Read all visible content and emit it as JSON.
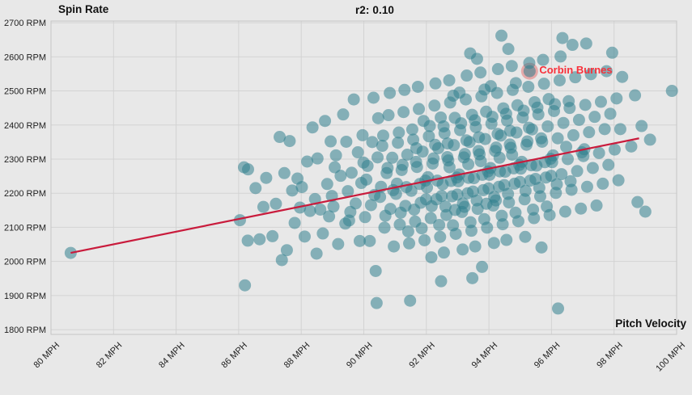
{
  "header": {
    "title": "r2: 0.10"
  },
  "chart_data": {
    "type": "scatter",
    "title": "r2: 0.10",
    "xlabel": "Pitch Velocity",
    "ylabel": "Spin Rate",
    "xlim": [
      80,
      100
    ],
    "ylim": [
      1786,
      2705
    ],
    "grid": true,
    "x_tick_values": [
      80,
      82,
      84,
      86,
      88,
      90,
      92,
      94,
      96,
      98,
      100
    ],
    "x_tick_labels": [
      "80 MPH",
      "82 MPH",
      "84 MPH",
      "86 MPH",
      "88 MPH",
      "90 MPH",
      "92 MPH",
      "94 MPH",
      "96 MPH",
      "98 MPH",
      "100 MPH"
    ],
    "y_tick_values": [
      1800,
      1900,
      2000,
      2100,
      2200,
      2300,
      2400,
      2500,
      2600,
      2700
    ],
    "y_tick_labels": [
      "1800 RPM",
      "1900 RPM",
      "2000 RPM",
      "2100 RPM",
      "2200 RPM",
      "2300 RPM",
      "2400 RPM",
      "2500 RPM",
      "2600 RPM",
      "2700 RPM"
    ],
    "trend_line": {
      "x1": 80.63,
      "y1": 2025,
      "x2": 98.8,
      "y2": 2361
    },
    "annotation": {
      "label": "Corbin Burnes",
      "mph": 95.3,
      "rpm": 2558
    },
    "colors": {
      "background": "#e8e8e8",
      "grid": "#d3d3d3",
      "border": "#c6c6c6",
      "point": "#31808e",
      "point_opacity": 0.55,
      "trend": "#c91b3c",
      "annotation_text": "#f8303a",
      "highlight_ring": "#e05252",
      "text": "#1f1f1f"
    },
    "points": [
      [
        80.63,
        2025
      ],
      [
        86.04,
        2121
      ],
      [
        86.17,
        2276
      ],
      [
        86.29,
        2061
      ],
      [
        86.2,
        1930
      ],
      [
        86.3,
        2270
      ],
      [
        86.54,
        2215
      ],
      [
        86.67,
        2065
      ],
      [
        86.79,
        2160
      ],
      [
        86.88,
        2245
      ],
      [
        87.08,
        2074
      ],
      [
        87.19,
        2169
      ],
      [
        87.31,
        2365
      ],
      [
        87.38,
        2004
      ],
      [
        87.46,
        2259
      ],
      [
        87.54,
        2033
      ],
      [
        87.63,
        2353
      ],
      [
        87.71,
        2208
      ],
      [
        87.79,
        2113
      ],
      [
        87.88,
        2243
      ],
      [
        87.96,
        2158
      ],
      [
        88.02,
        2218
      ],
      [
        88.11,
        2073
      ],
      [
        88.19,
        2293
      ],
      [
        88.28,
        2148
      ],
      [
        88.36,
        2393
      ],
      [
        88.44,
        2183
      ],
      [
        88.49,
        2023
      ],
      [
        88.52,
        2302
      ],
      [
        88.61,
        2152
      ],
      [
        88.69,
        2082
      ],
      [
        88.76,
        2412
      ],
      [
        88.83,
        2227
      ],
      [
        88.89,
        2132
      ],
      [
        88.94,
        2352
      ],
      [
        88.98,
        2192
      ],
      [
        89.03,
        2161
      ],
      [
        89.11,
        2311
      ],
      [
        89.18,
        2051
      ],
      [
        89.26,
        2251
      ],
      [
        89.34,
        2431
      ],
      [
        89.41,
        2111
      ],
      [
        89.49,
        2206
      ],
      [
        89.44,
        2351
      ],
      [
        89.07,
        2276
      ],
      [
        89.53,
        2120
      ],
      [
        89.61,
        2260
      ],
      [
        89.68,
        2475
      ],
      [
        89.74,
        2170
      ],
      [
        89.81,
        2320
      ],
      [
        89.87,
        2060
      ],
      [
        89.92,
        2230
      ],
      [
        89.96,
        2370
      ],
      [
        89.57,
        2145
      ],
      [
        89.99,
        2290
      ],
      [
        90.04,
        2130
      ],
      [
        90.12,
        2280
      ],
      [
        90.19,
        2060
      ],
      [
        90.27,
        2350
      ],
      [
        90.34,
        2195
      ],
      [
        90.41,
        1878
      ],
      [
        90.38,
        1972
      ],
      [
        90.46,
        2420
      ],
      [
        90.08,
        2240
      ],
      [
        90.23,
        2165
      ],
      [
        90.31,
        2480
      ],
      [
        90.44,
        2305
      ],
      [
        90.52,
        2189
      ],
      [
        90.59,
        2339
      ],
      [
        90.66,
        2099
      ],
      [
        90.73,
        2259
      ],
      [
        90.79,
        2429
      ],
      [
        90.85,
        2154
      ],
      [
        90.91,
        2304
      ],
      [
        90.96,
        2044
      ],
      [
        90.55,
        2219
      ],
      [
        90.62,
        2369
      ],
      [
        90.69,
        2134
      ],
      [
        90.76,
        2274
      ],
      [
        90.83,
        2494
      ],
      [
        90.94,
        2209
      ],
      [
        91.03,
        2198
      ],
      [
        91.09,
        2348
      ],
      [
        91.15,
        2108
      ],
      [
        91.21,
        2268
      ],
      [
        91.27,
        2438
      ],
      [
        91.33,
        2163
      ],
      [
        91.39,
        2313
      ],
      [
        91.45,
        2053
      ],
      [
        91.48,
        1885
      ],
      [
        91.06,
        2228
      ],
      [
        91.12,
        2378
      ],
      [
        91.18,
        2143
      ],
      [
        91.24,
        2283
      ],
      [
        91.3,
        2503
      ],
      [
        91.36,
        2218
      ],
      [
        91.42,
        2088
      ],
      [
        91.52,
        2207
      ],
      [
        91.58,
        2357
      ],
      [
        91.64,
        2117
      ],
      [
        91.7,
        2277
      ],
      [
        91.76,
        2447
      ],
      [
        91.82,
        2172
      ],
      [
        91.88,
        2322
      ],
      [
        91.94,
        2062
      ],
      [
        91.97,
        2237
      ],
      [
        91.55,
        2387
      ],
      [
        91.61,
        2152
      ],
      [
        91.67,
        2292
      ],
      [
        91.73,
        2512
      ],
      [
        91.79,
        2227
      ],
      [
        91.85,
        2097
      ],
      [
        91.91,
        2412
      ],
      [
        91.99,
        2182
      ],
      [
        91.68,
        2332
      ],
      [
        92.02,
        2217
      ],
      [
        92.08,
        2367
      ],
      [
        92.14,
        2127
      ],
      [
        92.2,
        2287
      ],
      [
        92.26,
        2457
      ],
      [
        92.32,
        2182
      ],
      [
        92.38,
        2332
      ],
      [
        92.44,
        2072
      ],
      [
        92.47,
        1942
      ],
      [
        92.05,
        2247
      ],
      [
        92.11,
        2397
      ],
      [
        92.17,
        2162
      ],
      [
        92.23,
        2302
      ],
      [
        92.29,
        2522
      ],
      [
        92.35,
        2237
      ],
      [
        92.41,
        2107
      ],
      [
        92.46,
        2422
      ],
      [
        92.49,
        2192
      ],
      [
        92.28,
        2342
      ],
      [
        92.16,
        2012
      ],
      [
        92.52,
        2226
      ],
      [
        92.58,
        2376
      ],
      [
        92.64,
        2136
      ],
      [
        92.7,
        2296
      ],
      [
        92.76,
        2466
      ],
      [
        92.82,
        2191
      ],
      [
        92.88,
        2341
      ],
      [
        92.94,
        2081
      ],
      [
        92.97,
        2246
      ],
      [
        92.55,
        2396
      ],
      [
        92.61,
        2161
      ],
      [
        92.67,
        2306
      ],
      [
        92.73,
        2531
      ],
      [
        92.79,
        2236
      ],
      [
        92.85,
        2106
      ],
      [
        92.91,
        2421
      ],
      [
        92.99,
        2196
      ],
      [
        92.68,
        2346
      ],
      [
        92.56,
        2026
      ],
      [
        92.74,
        2276
      ],
      [
        92.86,
        2486
      ],
      [
        92.92,
        2151
      ],
      [
        93.02,
        2235
      ],
      [
        93.08,
        2385
      ],
      [
        93.14,
        2145
      ],
      [
        93.2,
        2305
      ],
      [
        93.26,
        2475
      ],
      [
        93.32,
        2200
      ],
      [
        93.38,
        2350
      ],
      [
        93.44,
        2090
      ],
      [
        93.47,
        1951
      ],
      [
        93.05,
        2255
      ],
      [
        93.11,
        2405
      ],
      [
        93.17,
        2170
      ],
      [
        93.23,
        2315
      ],
      [
        93.29,
        2545
      ],
      [
        93.35,
        2245
      ],
      [
        93.41,
        2115
      ],
      [
        93.46,
        2430
      ],
      [
        93.49,
        2205
      ],
      [
        93.28,
        2355
      ],
      [
        93.16,
        2035
      ],
      [
        93.34,
        2285
      ],
      [
        93.06,
        2495
      ],
      [
        93.22,
        2160
      ],
      [
        93.4,
        2610
      ],
      [
        93.52,
        2244
      ],
      [
        93.58,
        2394
      ],
      [
        93.64,
        2154
      ],
      [
        93.7,
        2314
      ],
      [
        93.76,
        2484
      ],
      [
        93.82,
        2209
      ],
      [
        93.88,
        2359
      ],
      [
        93.94,
        2099
      ],
      [
        93.97,
        2264
      ],
      [
        93.55,
        2414
      ],
      [
        93.61,
        2179
      ],
      [
        93.67,
        2324
      ],
      [
        93.73,
        2554
      ],
      [
        93.79,
        2254
      ],
      [
        93.85,
        2124
      ],
      [
        93.91,
        2439
      ],
      [
        93.99,
        2214
      ],
      [
        93.68,
        2364
      ],
      [
        93.56,
        2044
      ],
      [
        93.74,
        2294
      ],
      [
        93.86,
        2504
      ],
      [
        93.92,
        2169
      ],
      [
        93.62,
        2594
      ],
      [
        93.78,
        1984
      ],
      [
        94.02,
        2254
      ],
      [
        94.08,
        2404
      ],
      [
        94.14,
        2164
      ],
      [
        94.2,
        2324
      ],
      [
        94.26,
        2494
      ],
      [
        94.32,
        2219
      ],
      [
        94.38,
        2369
      ],
      [
        94.44,
        2109
      ],
      [
        94.4,
        2662
      ],
      [
        94.05,
        2274
      ],
      [
        94.11,
        2424
      ],
      [
        94.17,
        2189
      ],
      [
        94.23,
        2334
      ],
      [
        94.29,
        2564
      ],
      [
        94.35,
        2264
      ],
      [
        94.41,
        2134
      ],
      [
        94.46,
        2449
      ],
      [
        94.49,
        2224
      ],
      [
        94.28,
        2374
      ],
      [
        94.16,
        2054
      ],
      [
        94.34,
        2304
      ],
      [
        94.06,
        2514
      ],
      [
        94.22,
        2179
      ],
      [
        94.52,
        2263
      ],
      [
        94.58,
        2413
      ],
      [
        94.64,
        2173
      ],
      [
        94.7,
        2333
      ],
      [
        94.76,
        2503
      ],
      [
        94.82,
        2228
      ],
      [
        94.88,
        2378
      ],
      [
        94.94,
        2118
      ],
      [
        94.97,
        2283
      ],
      [
        94.55,
        2433
      ],
      [
        94.61,
        2198
      ],
      [
        94.67,
        2343
      ],
      [
        94.73,
        2573
      ],
      [
        94.79,
        2273
      ],
      [
        94.85,
        2143
      ],
      [
        94.91,
        2458
      ],
      [
        94.99,
        2233
      ],
      [
        94.68,
        2383
      ],
      [
        94.56,
        2063
      ],
      [
        94.74,
        2313
      ],
      [
        94.86,
        2523
      ],
      [
        94.62,
        2623
      ],
      [
        95.02,
        2272
      ],
      [
        95.08,
        2422
      ],
      [
        95.14,
        2182
      ],
      [
        95.2,
        2342
      ],
      [
        95.26,
        2512
      ],
      [
        95.32,
        2237
      ],
      [
        95.38,
        2387
      ],
      [
        95.44,
        2127
      ],
      [
        95.05,
        2292
      ],
      [
        95.11,
        2442
      ],
      [
        95.17,
        2207
      ],
      [
        95.23,
        2352
      ],
      [
        95.29,
        2582
      ],
      [
        95.35,
        2282
      ],
      [
        95.41,
        2152
      ],
      [
        95.46,
        2467
      ],
      [
        95.49,
        2242
      ],
      [
        95.28,
        2392
      ],
      [
        95.16,
        2072
      ],
      [
        95.52,
        2281
      ],
      [
        95.58,
        2431
      ],
      [
        95.64,
        2191
      ],
      [
        95.7,
        2351
      ],
      [
        95.76,
        2521
      ],
      [
        95.82,
        2246
      ],
      [
        95.88,
        2396
      ],
      [
        95.94,
        2136
      ],
      [
        95.97,
        2301
      ],
      [
        95.55,
        2451
      ],
      [
        95.61,
        2216
      ],
      [
        95.67,
        2361
      ],
      [
        95.73,
        2591
      ],
      [
        95.79,
        2291
      ],
      [
        95.85,
        2161
      ],
      [
        95.91,
        2476
      ],
      [
        95.99,
        2251
      ],
      [
        95.68,
        2041
      ],
      [
        96.02,
        2291
      ],
      [
        96.08,
        2441
      ],
      [
        96.14,
        2201
      ],
      [
        96.2,
        2361
      ],
      [
        96.21,
        1862
      ],
      [
        96.26,
        2531
      ],
      [
        96.32,
        2256
      ],
      [
        96.38,
        2406
      ],
      [
        96.44,
        2146
      ],
      [
        96.35,
        2655
      ],
      [
        96.05,
        2311
      ],
      [
        96.11,
        2461
      ],
      [
        96.17,
        2226
      ],
      [
        96.29,
        2601
      ],
      [
        96.47,
        2336
      ],
      [
        96.52,
        2300
      ],
      [
        96.58,
        2450
      ],
      [
        96.64,
        2210
      ],
      [
        96.7,
        2370
      ],
      [
        96.76,
        2540
      ],
      [
        96.82,
        2265
      ],
      [
        96.88,
        2415
      ],
      [
        96.94,
        2155
      ],
      [
        96.97,
        2320
      ],
      [
        96.55,
        2470
      ],
      [
        96.61,
        2235
      ],
      [
        96.67,
        2635
      ],
      [
        97.02,
        2309
      ],
      [
        97.08,
        2459
      ],
      [
        97.14,
        2219
      ],
      [
        97.2,
        2379
      ],
      [
        97.26,
        2549
      ],
      [
        97.32,
        2274
      ],
      [
        97.38,
        2424
      ],
      [
        97.44,
        2164
      ],
      [
        97.05,
        2329
      ],
      [
        97.11,
        2639
      ],
      [
        97.52,
        2318
      ],
      [
        97.58,
        2468
      ],
      [
        97.64,
        2228
      ],
      [
        97.7,
        2388
      ],
      [
        97.76,
        2558
      ],
      [
        97.82,
        2283
      ],
      [
        97.88,
        2433
      ],
      [
        97.94,
        2612
      ],
      [
        98.02,
        2328
      ],
      [
        98.08,
        2478
      ],
      [
        98.14,
        2238
      ],
      [
        98.2,
        2388
      ],
      [
        98.26,
        2541
      ],
      [
        98.55,
        2337
      ],
      [
        98.67,
        2487
      ],
      [
        98.75,
        2174
      ],
      [
        98.88,
        2397
      ],
      [
        99.0,
        2146
      ],
      [
        99.15,
        2357
      ],
      [
        99.85,
        2500
      ]
    ]
  }
}
